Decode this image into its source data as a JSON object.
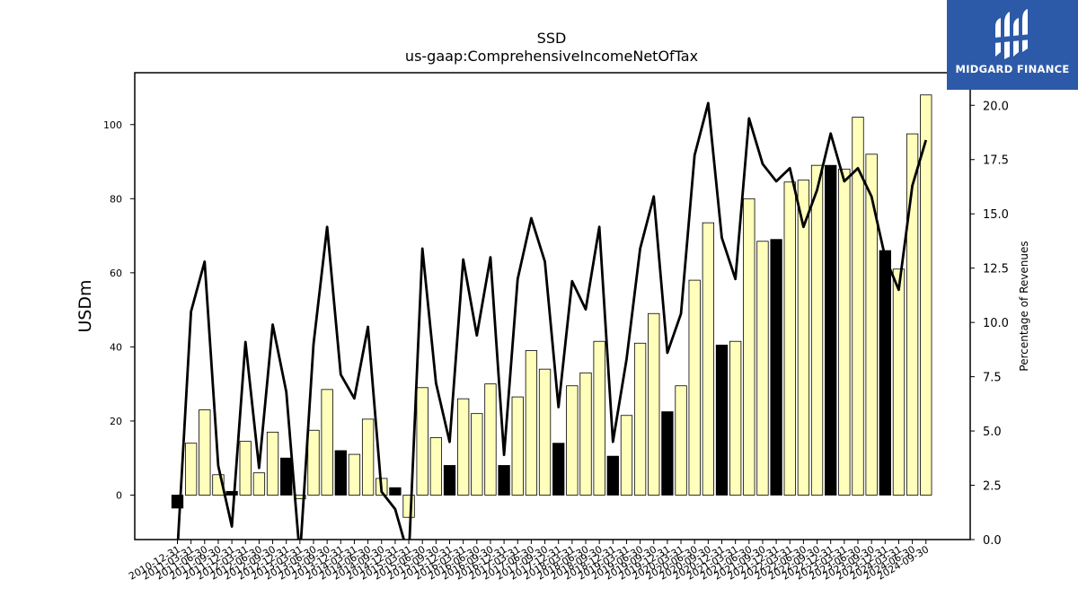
{
  "chart_data": {
    "type": "bar",
    "title": "SSD",
    "subtitle": "us-gaap:ComprehensiveIncomeNetOfTax",
    "ylabel": "USDm",
    "y2label": "Percentage of Revenues",
    "ylim": [
      -12,
      114
    ],
    "y2lim": [
      0.0,
      21.5
    ],
    "yticks": [
      0,
      20,
      40,
      60,
      80,
      100
    ],
    "y2ticks": [
      "0.0",
      "2.5",
      "5.0",
      "7.5",
      "10.0",
      "12.5",
      "15.0",
      "17.5",
      "20.0"
    ],
    "grid": false,
    "categories": [
      "2010-12-31",
      "2011-03-31",
      "2011-06-30",
      "2011-09-30",
      "2011-12-31",
      "2012-03-31",
      "2012-06-30",
      "2012-09-30",
      "2012-12-31",
      "2013-03-31",
      "2013-06-30",
      "2013-09-30",
      "2013-12-31",
      "2014-03-31",
      "2014-06-30",
      "2014-09-30",
      "2014-12-31",
      "2015-03-31",
      "2015-06-30",
      "2015-09-30",
      "2015-12-31",
      "2016-03-31",
      "2016-06-30",
      "2016-09-30",
      "2016-12-31",
      "2017-03-31",
      "2017-06-30",
      "2017-09-30",
      "2017-12-31",
      "2018-03-31",
      "2018-06-30",
      "2018-09-30",
      "2018-12-31",
      "2019-03-31",
      "2019-06-30",
      "2019-09-30",
      "2019-12-31",
      "2020-03-31",
      "2020-06-30",
      "2020-09-30",
      "2020-12-31",
      "2021-03-31",
      "2021-06-30",
      "2021-09-30",
      "2021-12-31",
      "2022-03-31",
      "2022-06-30",
      "2022-09-30",
      "2022-12-31",
      "2023-03-31",
      "2023-06-30",
      "2023-09-30",
      "2023-12-31",
      "2024-03-31",
      "2024-06-30",
      "2024-09-30"
    ],
    "series": [
      {
        "type": "bar",
        "values": [
          -3.5,
          14,
          23,
          5.5,
          1,
          14.5,
          6,
          17,
          10,
          -1,
          17.5,
          28.5,
          12,
          11,
          20.5,
          4.5,
          2,
          -6,
          29,
          15.5,
          8,
          26,
          22,
          30,
          8,
          26.5,
          39,
          34,
          14,
          29.5,
          33,
          41.5,
          10.5,
          21.5,
          41,
          49,
          22.5,
          29.5,
          58,
          73.5,
          40.5,
          41.5,
          80,
          68.5,
          69,
          84.5,
          85,
          89,
          89,
          88,
          102,
          92,
          66,
          61,
          97.5,
          108
        ]
      },
      {
        "type": "line",
        "axis": "right",
        "values": [
          -0.5,
          10.5,
          12.8,
          3.4,
          0.6,
          9.1,
          3.3,
          9.9,
          6.8,
          -0.8,
          9.0,
          14.4,
          7.6,
          6.5,
          9.8,
          2.2,
          1.4,
          -0.8,
          13.4,
          7.2,
          4.5,
          12.9,
          9.4,
          13.0,
          3.9,
          12.0,
          14.8,
          12.8,
          6.1,
          11.9,
          10.6,
          14.4,
          4.5,
          8.3,
          13.4,
          15.8,
          8.6,
          10.4,
          17.7,
          20.1,
          13.9,
          12.0,
          19.4,
          17.3,
          16.5,
          17.1,
          14.4,
          16.1,
          18.7,
          16.5,
          17.1,
          15.8,
          13.0,
          11.5,
          16.3,
          18.4
        ]
      }
    ],
    "colors": {
      "bar_fill": "#ffffbb",
      "bar_highlight": "#000000",
      "bar_edge": "#000000",
      "line": "#000000"
    }
  },
  "brand": {
    "name": "MIDGARD FINANCE",
    "icon": "midgard-logo-icon",
    "color": "#2d5aa8"
  }
}
